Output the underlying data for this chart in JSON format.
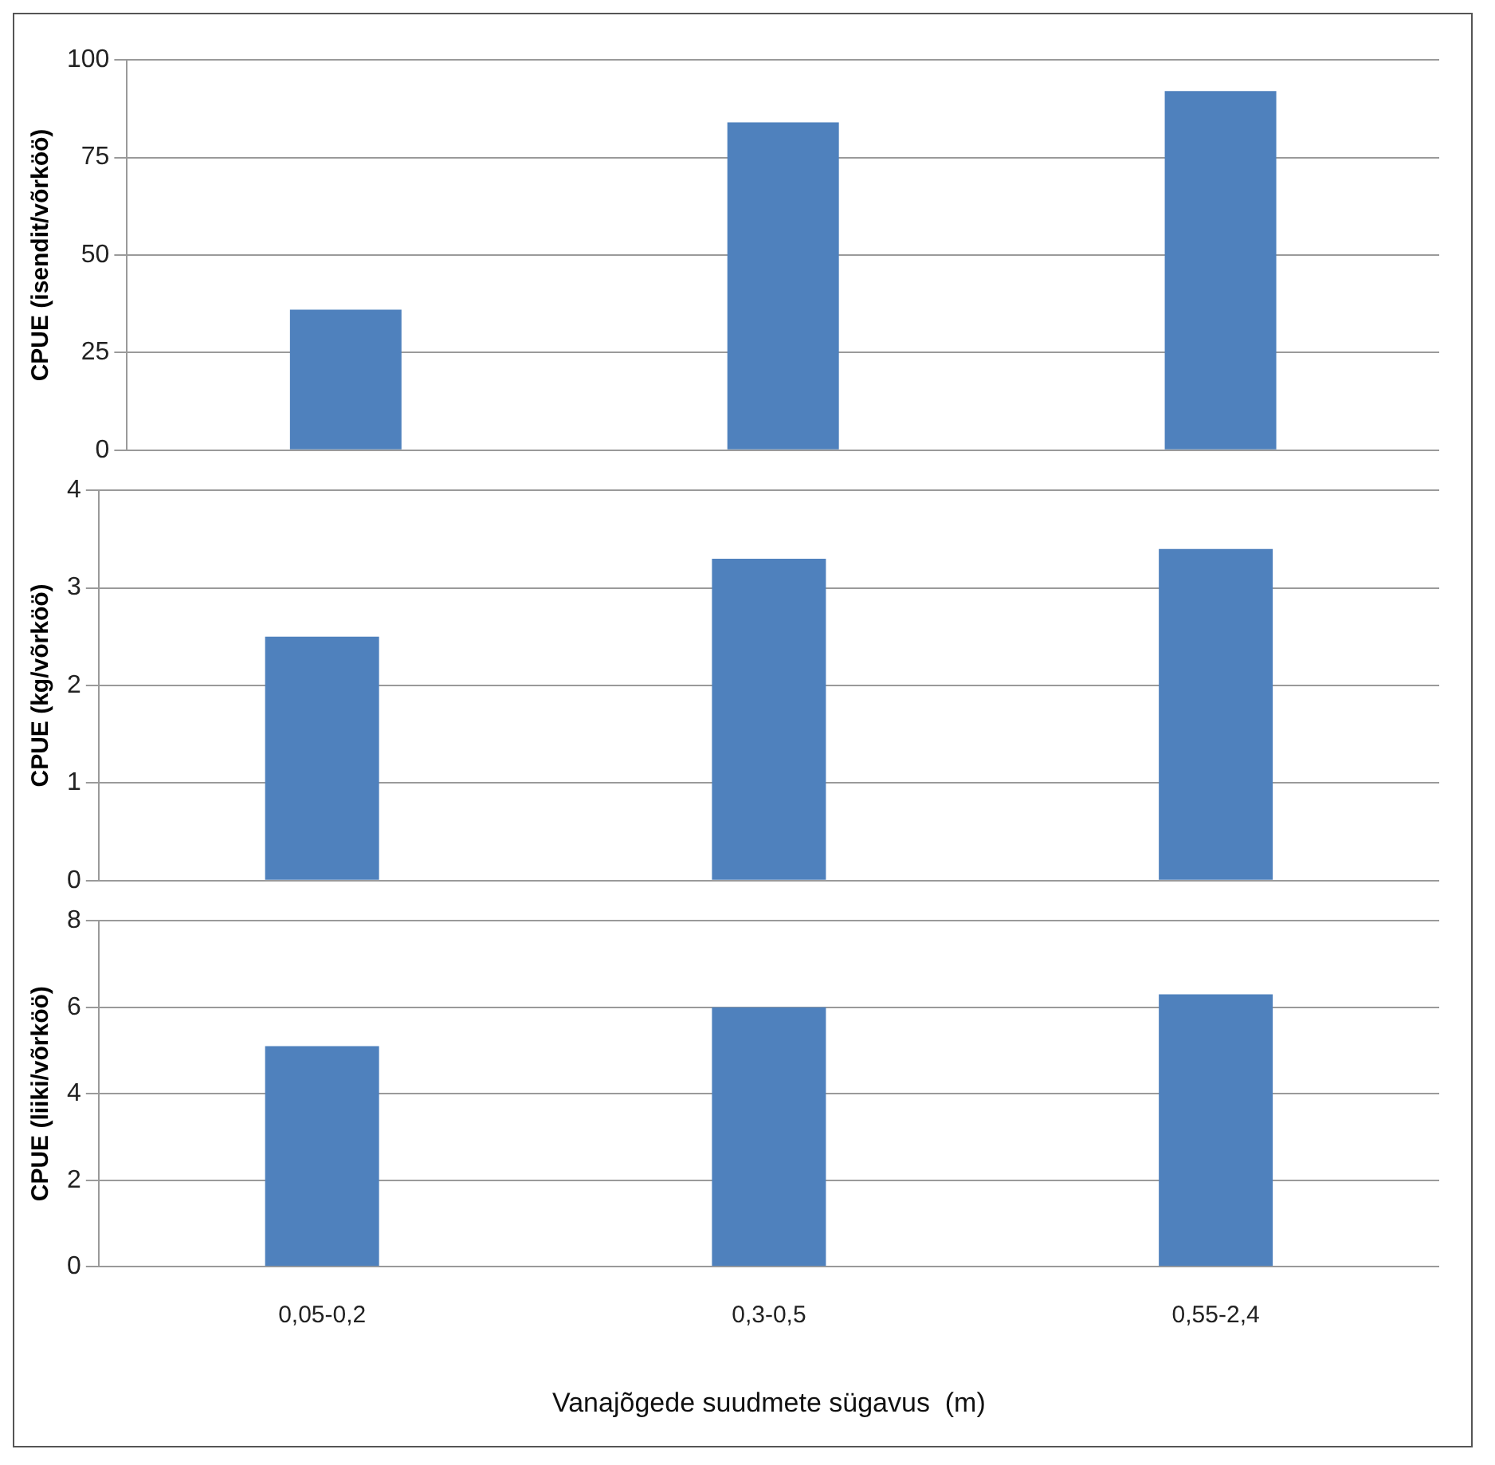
{
  "chart_data": [
    {
      "type": "bar",
      "ylabel": "CPUE (isendit/võrköö)",
      "categories": [
        null,
        null,
        null
      ],
      "values": [
        36,
        84,
        92
      ],
      "color": "#4f81bd",
      "ylim": [
        0,
        100
      ],
      "yticks": [
        0,
        25,
        50,
        75,
        100
      ],
      "grid": "y",
      "tick_labels": "y"
    },
    {
      "type": "bar",
      "ylabel": "CPUE (kg/võrköö)",
      "categories": [
        null,
        null,
        null
      ],
      "values": [
        2.5,
        3.3,
        3.4
      ],
      "color": "#4f81bd",
      "ylim": [
        0,
        4
      ],
      "yticks": [
        0,
        1,
        2,
        3,
        4
      ],
      "grid": "y",
      "tick_labels": "y"
    },
    {
      "type": "bar",
      "ylabel": "CPUE (liiki/võrköö)",
      "xlabel": "Vanajõgede suudmete sügavus  (m)",
      "categories": [
        "0,05-0,2",
        "0,3-0,5",
        "0,55-2,4"
      ],
      "values": [
        5.1,
        6.0,
        6.3
      ],
      "color": "#4f81bd",
      "ylim": [
        0,
        8
      ],
      "yticks": [
        0,
        2,
        4,
        6,
        8
      ],
      "grid": "y"
    }
  ]
}
